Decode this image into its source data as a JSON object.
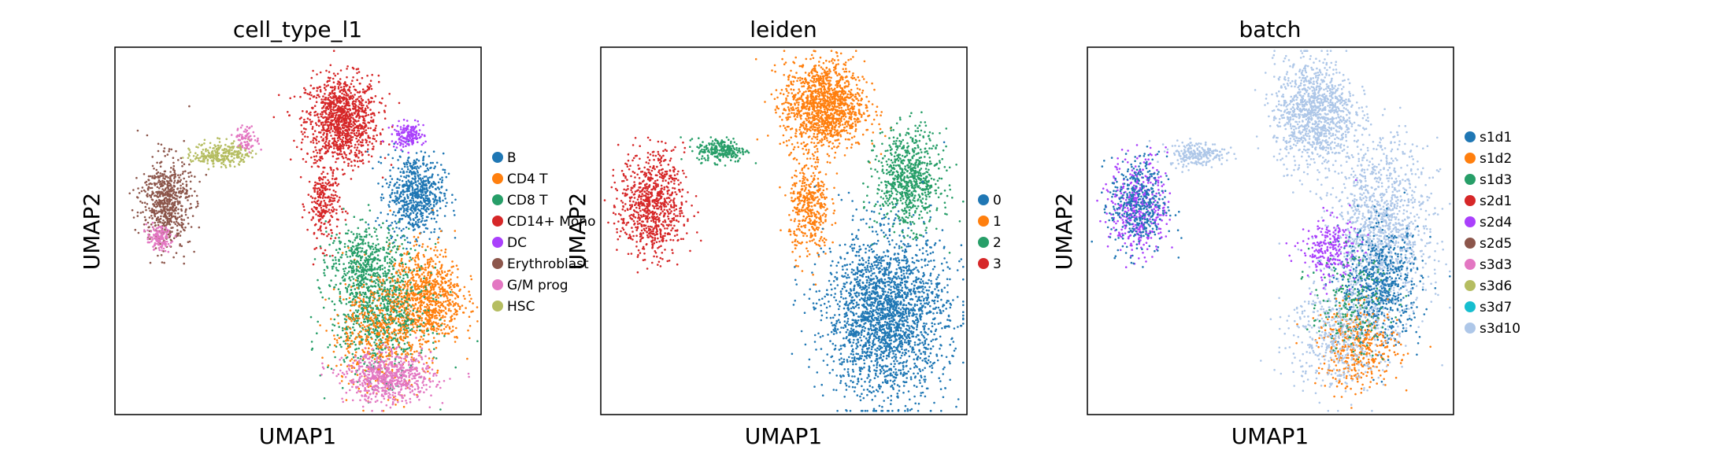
{
  "chart_data": [
    {
      "type": "scatter",
      "title": "cell_type_l1",
      "xlabel": "UMAP1",
      "ylabel": "UMAP2",
      "legend_position": "right",
      "xlim": [
        0,
        100
      ],
      "ylim": [
        0,
        100
      ],
      "categories": [
        "B",
        "CD4 T",
        "CD8 T",
        "CD14+ Mono",
        "DC",
        "Erythroblast",
        "G/M prog",
        "HSC"
      ],
      "colors": [
        "#1f77b4",
        "#ff7f0e",
        "#279e68",
        "#d62728",
        "#aa40fc",
        "#8c564b",
        "#e377c2",
        "#b5bd61"
      ],
      "clusters": [
        {
          "category": "CD14+ Mono",
          "cx": 62,
          "cy": 80,
          "rx": 9,
          "ry": 11,
          "n": 1100
        },
        {
          "category": "CD14+ Mono",
          "cx": 57,
          "cy": 57,
          "rx": 4,
          "ry": 10,
          "n": 250
        },
        {
          "category": "B",
          "cx": 82,
          "cy": 60,
          "rx": 7,
          "ry": 10,
          "n": 650
        },
        {
          "category": "CD4 T",
          "cx": 85,
          "cy": 32,
          "rx": 9,
          "ry": 12,
          "n": 850
        },
        {
          "category": "CD8 T",
          "cx": 72,
          "cy": 28,
          "rx": 12,
          "ry": 16,
          "n": 850
        },
        {
          "category": "CD4 T",
          "cx": 72,
          "cy": 22,
          "rx": 12,
          "ry": 14,
          "n": 500
        },
        {
          "category": "CD8 T",
          "cx": 68,
          "cy": 42,
          "rx": 9,
          "ry": 9,
          "n": 350
        },
        {
          "category": "G/M prog",
          "cx": 75,
          "cy": 10,
          "rx": 11,
          "ry": 6,
          "n": 650
        },
        {
          "category": "DC",
          "cx": 80,
          "cy": 76,
          "rx": 4,
          "ry": 3,
          "n": 160
        },
        {
          "category": "Erythroblast",
          "cx": 14,
          "cy": 58,
          "rx": 6,
          "ry": 11,
          "n": 650
        },
        {
          "category": "G/M prog",
          "cx": 12,
          "cy": 48,
          "rx": 3,
          "ry": 3,
          "n": 140
        },
        {
          "category": "HSC",
          "cx": 29,
          "cy": 71,
          "rx": 7,
          "ry": 3,
          "n": 260
        },
        {
          "category": "G/M prog",
          "cx": 36,
          "cy": 75,
          "rx": 3,
          "ry": 3,
          "n": 80
        }
      ]
    },
    {
      "type": "scatter",
      "title": "leiden",
      "xlabel": "UMAP1",
      "ylabel": "UMAP2",
      "legend_position": "right",
      "xlim": [
        0,
        100
      ],
      "ylim": [
        0,
        100
      ],
      "categories": [
        "0",
        "1",
        "2",
        "3"
      ],
      "colors": [
        "#1f77b4",
        "#ff7f0e",
        "#279e68",
        "#d62728"
      ],
      "clusters": [
        {
          "category": "1",
          "cx": 61,
          "cy": 84,
          "rx": 10,
          "ry": 11,
          "n": 1300
        },
        {
          "category": "1",
          "cx": 57,
          "cy": 56,
          "rx": 5,
          "ry": 12,
          "n": 400
        },
        {
          "category": "2",
          "cx": 84,
          "cy": 64,
          "rx": 8,
          "ry": 12,
          "n": 750
        },
        {
          "category": "0",
          "cx": 78,
          "cy": 27,
          "rx": 15,
          "ry": 20,
          "n": 2300
        },
        {
          "category": "3",
          "cx": 14,
          "cy": 57,
          "rx": 8,
          "ry": 13,
          "n": 800
        },
        {
          "category": "2",
          "cx": 33,
          "cy": 72,
          "rx": 6,
          "ry": 3,
          "n": 240
        }
      ]
    },
    {
      "type": "scatter",
      "title": "batch",
      "xlabel": "UMAP1",
      "ylabel": "UMAP2",
      "legend_position": "right",
      "xlim": [
        0,
        100
      ],
      "ylim": [
        0,
        100
      ],
      "categories": [
        "s1d1",
        "s1d2",
        "s1d3",
        "s2d1",
        "s2d4",
        "s2d5",
        "s3d3",
        "s3d6",
        "s3d7",
        "s3d10"
      ],
      "colors": [
        "#1f77b4",
        "#ff7f0e",
        "#279e68",
        "#d62728",
        "#aa40fc",
        "#8c564b",
        "#e377c2",
        "#b5bd61",
        "#17becf",
        "#aec7e8"
      ],
      "clusters": [
        {
          "category": "s3d10",
          "cx": 62,
          "cy": 82,
          "rx": 10,
          "ry": 13,
          "n": 1100
        },
        {
          "category": "s3d10",
          "cx": 80,
          "cy": 50,
          "rx": 12,
          "ry": 22,
          "n": 1300
        },
        {
          "category": "s1d1",
          "cx": 80,
          "cy": 35,
          "rx": 10,
          "ry": 14,
          "n": 650
        },
        {
          "category": "s1d2",
          "cx": 74,
          "cy": 18,
          "rx": 10,
          "ry": 10,
          "n": 400
        },
        {
          "category": "s3d10",
          "cx": 68,
          "cy": 22,
          "rx": 12,
          "ry": 14,
          "n": 500
        },
        {
          "category": "s2d4",
          "cx": 66,
          "cy": 45,
          "rx": 7,
          "ry": 8,
          "n": 240
        },
        {
          "category": "s1d3",
          "cx": 72,
          "cy": 30,
          "rx": 10,
          "ry": 12,
          "n": 180
        },
        {
          "category": "s2d4",
          "cx": 14,
          "cy": 57,
          "rx": 7,
          "ry": 12,
          "n": 420
        },
        {
          "category": "s1d1",
          "cx": 14,
          "cy": 57,
          "rx": 7,
          "ry": 12,
          "n": 420
        },
        {
          "category": "s3d10",
          "cx": 30,
          "cy": 71,
          "rx": 7,
          "ry": 3,
          "n": 220
        }
      ]
    }
  ]
}
